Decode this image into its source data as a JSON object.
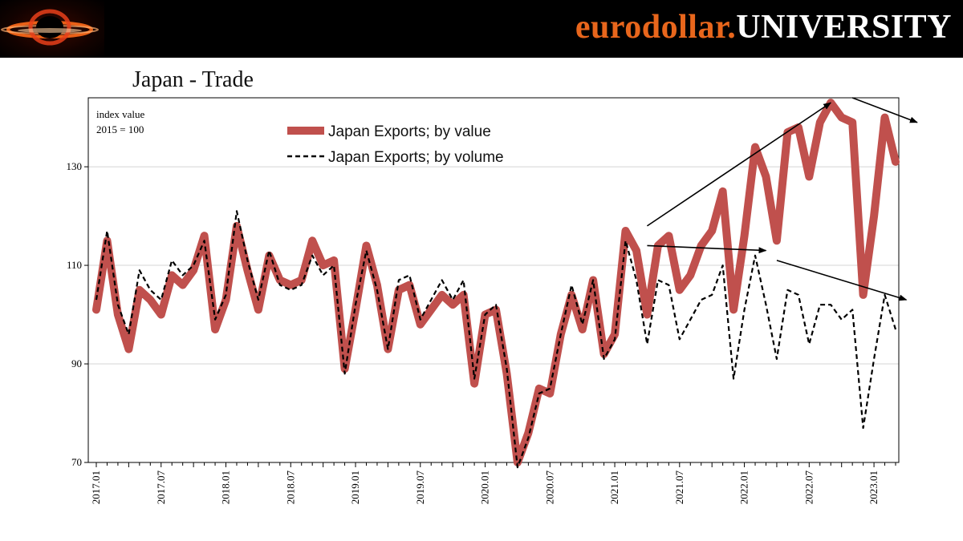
{
  "header": {
    "brand_part1": "eurodollar.",
    "brand_part2": "UNIVERSITY",
    "logo_icon": "black-hole-logo-icon"
  },
  "chart_data": {
    "type": "line",
    "title": "Japan - Trade",
    "note_line1": "index value",
    "note_line2": "2015 = 100",
    "xlabel": "",
    "ylabel": "",
    "ylim": [
      70,
      144
    ],
    "yticks": [
      70,
      90,
      110,
      130
    ],
    "grid": true,
    "legend_position": "top-center",
    "x_tick_labels": [
      "2017.01",
      "2017.07",
      "2018.01",
      "2018.07",
      "2019.01",
      "2019.07",
      "2020.01",
      "2020.07",
      "2021.01",
      "2021.07",
      "2022.01",
      "2022.07",
      "2023.01"
    ],
    "x_start": "2017.01",
    "x_end": "2023.05",
    "series": [
      {
        "name": "Japan Exports; by value",
        "style": "thick-solid",
        "color": "#c0504d",
        "values": [
          101,
          115,
          100,
          93,
          105,
          103,
          100,
          108,
          106,
          109,
          116,
          97,
          103,
          118,
          109,
          101,
          112,
          107,
          106,
          107,
          115,
          110,
          111,
          89,
          101,
          114,
          106,
          93,
          105,
          106,
          98,
          101,
          104,
          102,
          104,
          86,
          100,
          101,
          88,
          70,
          76,
          85,
          84,
          96,
          104,
          97,
          107,
          92,
          96,
          117,
          113,
          100,
          114,
          116,
          105,
          108,
          114,
          117,
          125,
          101,
          116,
          134,
          128,
          115,
          137,
          138,
          128,
          139,
          143,
          140,
          139,
          104,
          120,
          140,
          131
        ]
      },
      {
        "name": "Japan Exports; by volume",
        "style": "dashed",
        "color": "#000000",
        "values": [
          103,
          117,
          102,
          96,
          109,
          105,
          103,
          111,
          108,
          110,
          115,
          99,
          104,
          121,
          111,
          103,
          113,
          106,
          105,
          106,
          112,
          108,
          110,
          88,
          102,
          113,
          105,
          93,
          107,
          108,
          99,
          103,
          107,
          103,
          107,
          87,
          100,
          102,
          89,
          69,
          75,
          84,
          85,
          96,
          106,
          98,
          107,
          91,
          95,
          115,
          107,
          94,
          107,
          106,
          95,
          99,
          103,
          104,
          110,
          87,
          101,
          112,
          102,
          91,
          105,
          104,
          94,
          102,
          102,
          99,
          101,
          77,
          91,
          104,
          97
        ]
      }
    ],
    "annotations": [
      {
        "type": "arrow",
        "from": [
          "2021.04",
          118
        ],
        "to": [
          "2022.09",
          143
        ]
      },
      {
        "type": "arrow",
        "from": [
          "2022.11",
          144
        ],
        "to": [
          "2023.05",
          139
        ]
      },
      {
        "type": "arrow",
        "from": [
          "2021.04",
          114
        ],
        "to": [
          "2022.03",
          113
        ]
      },
      {
        "type": "arrow",
        "from": [
          "2022.04",
          111
        ],
        "to": [
          "2023.04",
          103
        ]
      }
    ]
  }
}
